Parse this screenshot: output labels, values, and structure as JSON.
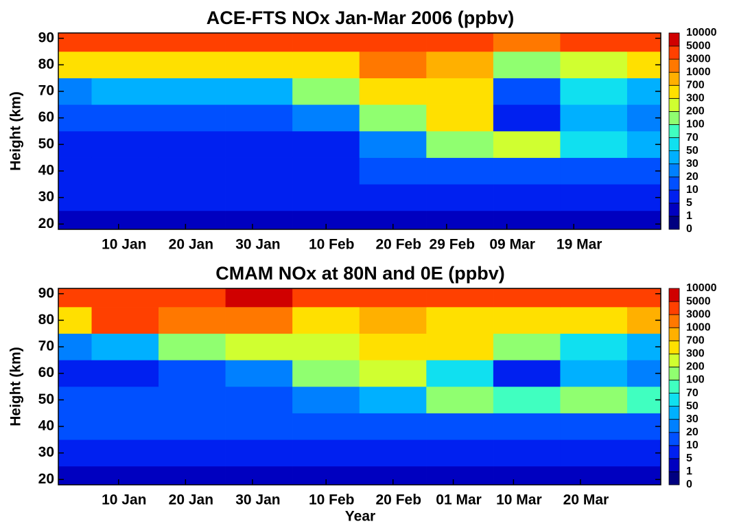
{
  "chart_data": [
    {
      "type": "contour",
      "title": "ACE-FTS NOx Jan-Mar 2006 (ppbv)",
      "ylabel": "Height (km)",
      "xlim": [
        1,
        91
      ],
      "ylim": [
        18,
        92
      ],
      "yticks": [
        20,
        30,
        40,
        50,
        60,
        70,
        80,
        90
      ],
      "xticks": [
        {
          "value": 10,
          "label": "10 Jan"
        },
        {
          "value": 20,
          "label": "20 Jan"
        },
        {
          "value": 30,
          "label": "30 Jan"
        },
        {
          "value": 41,
          "label": "10 Feb"
        },
        {
          "value": 51,
          "label": "20 Feb"
        },
        {
          "value": 59,
          "label": "29 Feb"
        },
        {
          "value": 68,
          "label": "09 Mar"
        },
        {
          "value": 78,
          "label": "19 Mar"
        }
      ],
      "x": [
        1,
        11,
        21,
        31,
        41,
        51,
        61,
        71,
        81,
        91
      ],
      "heights": [
        20,
        30,
        40,
        50,
        60,
        70,
        80,
        90
      ],
      "z": [
        [
          3,
          3,
          3,
          3,
          3,
          3,
          3,
          3,
          3,
          3
        ],
        [
          5,
          5,
          5,
          5,
          5,
          5,
          5,
          7,
          5,
          5
        ],
        [
          7,
          7,
          7,
          7,
          7,
          10,
          10,
          10,
          10,
          10
        ],
        [
          7,
          7,
          7,
          7,
          7,
          20,
          100,
          200,
          50,
          30
        ],
        [
          10,
          10,
          10,
          10,
          20,
          100,
          300,
          5,
          30,
          20
        ],
        [
          20,
          30,
          30,
          30,
          100,
          300,
          500,
          10,
          50,
          30
        ],
        [
          300,
          300,
          300,
          300,
          500,
          1000,
          700,
          100,
          200,
          300
        ],
        [
          3000,
          3000,
          3000,
          3000,
          3000,
          3000,
          3000,
          1000,
          3000,
          3000
        ]
      ],
      "levels": [
        0,
        1,
        5,
        10,
        20,
        30,
        50,
        70,
        100,
        200,
        300,
        700,
        1000,
        3000,
        5000,
        10000
      ],
      "colors": [
        "#000080",
        "#0000c0",
        "#0020f0",
        "#0050ff",
        "#0080ff",
        "#00b0ff",
        "#10e0f0",
        "#40ffc0",
        "#90ff70",
        "#d0ff30",
        "#ffe000",
        "#ffb000",
        "#ff7800",
        "#ff4000",
        "#d00000"
      ]
    },
    {
      "type": "contour",
      "title": "CMAM NOx at 80N and 0E (ppbv)",
      "ylabel": "Height (km)",
      "xlabel": "Year",
      "xlim": [
        1,
        91
      ],
      "ylim": [
        18,
        92
      ],
      "yticks": [
        20,
        30,
        40,
        50,
        60,
        70,
        80,
        90
      ],
      "xticks": [
        {
          "value": 10,
          "label": "10 Jan"
        },
        {
          "value": 20,
          "label": "20 Jan"
        },
        {
          "value": 30,
          "label": "30 Jan"
        },
        {
          "value": 41,
          "label": "10 Feb"
        },
        {
          "value": 51,
          "label": "20 Feb"
        },
        {
          "value": 60,
          "label": "01 Mar"
        },
        {
          "value": 69,
          "label": "10 Mar"
        },
        {
          "value": 79,
          "label": "20 Mar"
        }
      ],
      "x": [
        1,
        11,
        21,
        31,
        41,
        51,
        61,
        71,
        81,
        91
      ],
      "heights": [
        20,
        30,
        40,
        50,
        60,
        70,
        80,
        90
      ],
      "z": [
        [
          1,
          1,
          1,
          1,
          1,
          1,
          1,
          1,
          1,
          1
        ],
        [
          7,
          7,
          7,
          7,
          7,
          7,
          7,
          7,
          7,
          7
        ],
        [
          15,
          15,
          15,
          15,
          15,
          10,
          10,
          10,
          10,
          10
        ],
        [
          10,
          10,
          10,
          15,
          20,
          40,
          100,
          70,
          150,
          70
        ],
        [
          7,
          7,
          10,
          20,
          100,
          200,
          60,
          5,
          30,
          20
        ],
        [
          20,
          30,
          100,
          200,
          200,
          300,
          300,
          100,
          50,
          30
        ],
        [
          500,
          3000,
          1000,
          1500,
          500,
          700,
          500,
          300,
          500,
          700
        ],
        [
          3000,
          3000,
          3000,
          5000,
          3000,
          3000,
          3000,
          3000,
          3000,
          3000
        ]
      ],
      "levels": [
        0,
        1,
        5,
        10,
        20,
        30,
        50,
        70,
        100,
        200,
        300,
        700,
        1000,
        3000,
        5000,
        10000
      ],
      "colors": [
        "#000080",
        "#0000c0",
        "#0020f0",
        "#0050ff",
        "#0080ff",
        "#00b0ff",
        "#10e0f0",
        "#40ffc0",
        "#90ff70",
        "#d0ff30",
        "#ffe000",
        "#ffb000",
        "#ff7800",
        "#ff4000",
        "#d00000"
      ]
    }
  ]
}
